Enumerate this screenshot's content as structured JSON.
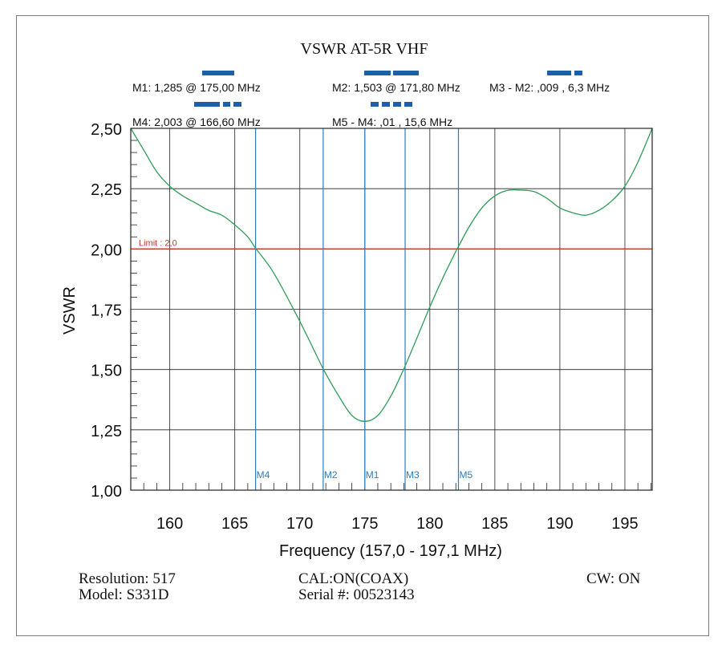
{
  "chart_data": {
    "type": "line",
    "title": "VSWR AT-5R VHF",
    "xlabel": "Frequency (157,0 - 197,1 MHz)",
    "ylabel": "VSWR",
    "xlim": [
      157.0,
      197.1
    ],
    "ylim": [
      1.0,
      2.5
    ],
    "x_ticks": [
      160,
      165,
      170,
      175,
      180,
      185,
      190,
      195
    ],
    "x_tick_labels": [
      "160",
      "165",
      "170",
      "175",
      "180",
      "185",
      "190",
      "195"
    ],
    "y_ticks": [
      1.0,
      1.25,
      1.5,
      1.75,
      2.0,
      2.25,
      2.5
    ],
    "y_tick_labels": [
      "1,00",
      "1,25",
      "1,50",
      "1,75",
      "2,00",
      "2,25",
      "2,50"
    ],
    "grid": true,
    "limit": {
      "value": 2.0,
      "label": "Limit : 2,0",
      "color": "#c0392b"
    },
    "line_color": "#2e9e57",
    "marker_color": "#2b7bbd",
    "series": [
      {
        "x": [
          157.0,
          158.0,
          159.0,
          160.0,
          161.0,
          162.0,
          163.0,
          164.0,
          165.0,
          166.0,
          166.6,
          168.0,
          170.0,
          171.8,
          173.0,
          174.0,
          175.0,
          176.0,
          177.0,
          178.0,
          179.0,
          180.0,
          181.0,
          182.0,
          182.2,
          183.0,
          184.0,
          185.0,
          186.0,
          187.0,
          188.0,
          189.0,
          190.0,
          191.0,
          192.0,
          193.0,
          194.0,
          195.0,
          196.0,
          197.1
        ],
        "y": [
          2.5,
          2.41,
          2.32,
          2.26,
          2.22,
          2.19,
          2.16,
          2.14,
          2.1,
          2.05,
          2.003,
          1.9,
          1.7,
          1.503,
          1.39,
          1.31,
          1.285,
          1.31,
          1.39,
          1.503,
          1.63,
          1.76,
          1.88,
          1.99,
          2.01,
          2.09,
          2.17,
          2.22,
          2.243,
          2.244,
          2.238,
          2.21,
          2.17,
          2.15,
          2.14,
          2.16,
          2.2,
          2.26,
          2.36,
          2.5
        ]
      }
    ],
    "markers": [
      {
        "label": "M4",
        "x": 166.6
      },
      {
        "label": "M2",
        "x": 171.8
      },
      {
        "label": "M1",
        "x": 175.0
      },
      {
        "label": "M3",
        "x": 178.1
      },
      {
        "label": "M5",
        "x": 182.2
      }
    ],
    "marker_readouts": [
      "M1: 1,285  @ 175,00 MHz",
      "M2: 1,503  @ 171,80 MHz",
      "M3 - M2: ,009  , 6,3 MHz",
      "M4: 2,003  @ 166,60 MHz",
      "M5 - M4: ,01  , 15,6 MHz"
    ]
  },
  "footer": {
    "resolution": "Resolution:  517",
    "model": "Model: S331D",
    "cal": "CAL:ON(COAX)",
    "serial": "Serial #: 00523143",
    "cw": "CW: ON"
  }
}
